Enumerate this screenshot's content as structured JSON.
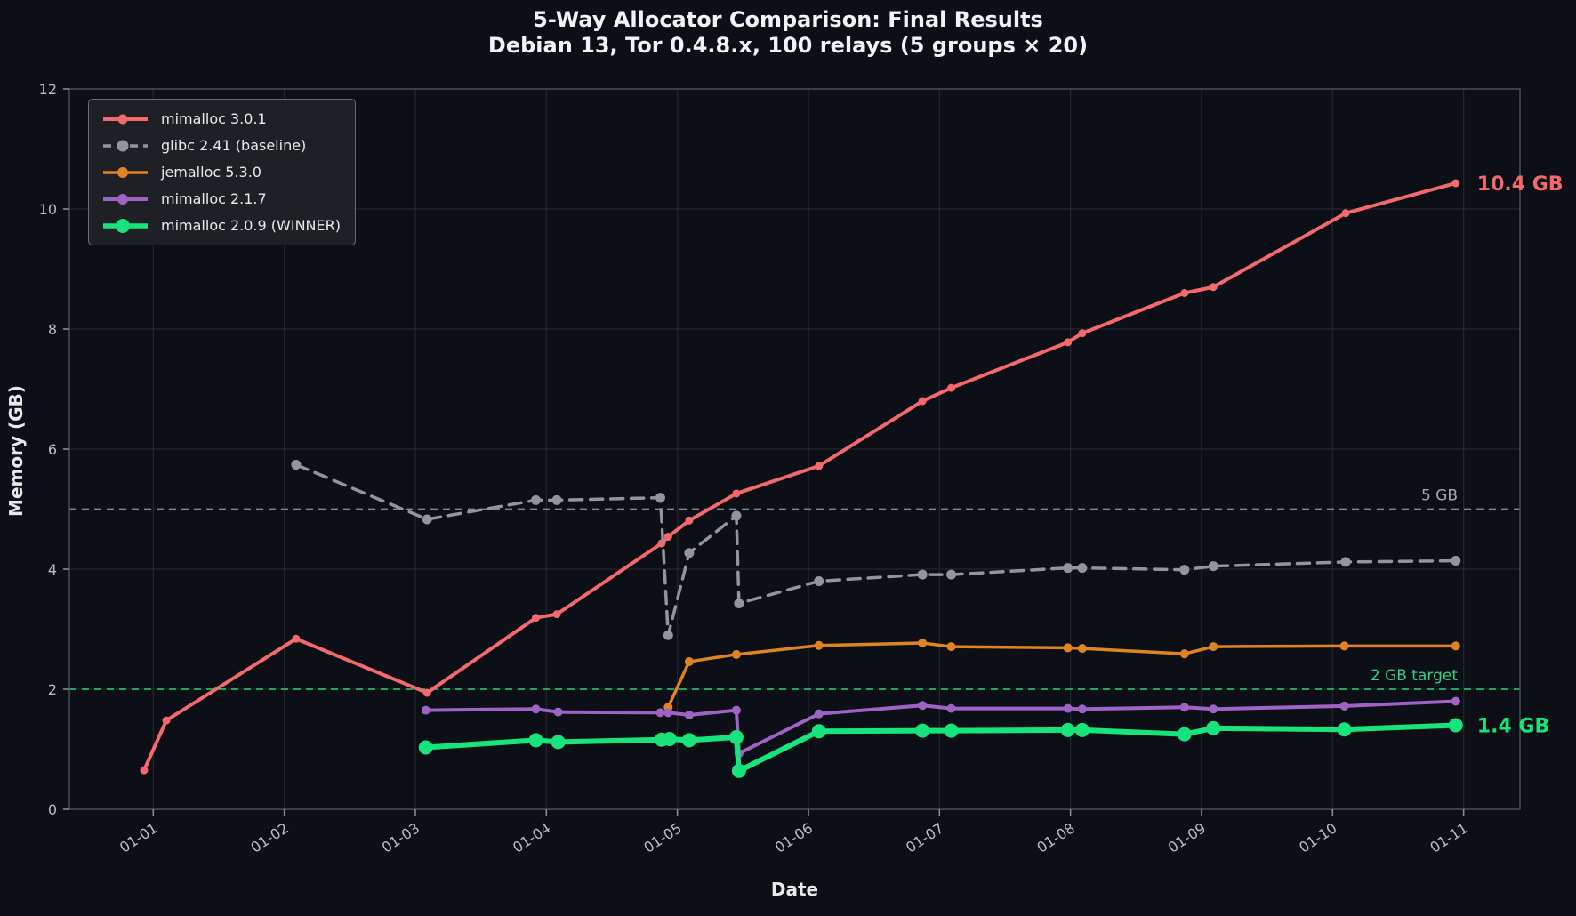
{
  "title": {
    "line1": "5-Way Allocator Comparison: Final Results",
    "line2": "Debian 13, Tor 0.4.8.x, 100 relays (5 groups × 20)"
  },
  "chart_data": {
    "type": "line",
    "title": "5-Way Allocator Comparison: Final Results",
    "subtitle": "Debian 13, Tor 0.4.8.x, 100 relays (5 groups × 20)",
    "xlabel": "Date",
    "ylabel": "Memory (GB)",
    "ylim": [
      0,
      12
    ],
    "xlim_days": [
      -0.64,
      10.43
    ],
    "grid": true,
    "legend_position": "upper-left",
    "y_ticks": [
      0,
      2,
      4,
      6,
      8,
      10,
      12
    ],
    "x_ticks": {
      "days": [
        0,
        1,
        2,
        3,
        4,
        5,
        6,
        7,
        8,
        9,
        10
      ],
      "labels": [
        "01-01",
        "01-02",
        "01-03",
        "01-04",
        "01-05",
        "01-06",
        "01-07",
        "01-08",
        "01-09",
        "01-10",
        "01-11"
      ]
    },
    "series": [
      {
        "name": "mimalloc 3.0.1",
        "color": "#f4696b",
        "style": "solid",
        "line_width": 4,
        "marker_radius": 4.5,
        "x": [
          -0.07,
          0.1,
          1.09,
          2.09,
          2.92,
          3.08,
          3.88,
          3.93,
          4.09,
          4.45,
          5.08,
          5.87,
          6.09,
          6.98,
          7.09,
          7.87,
          8.09,
          9.1,
          9.94
        ],
        "y": [
          0.65,
          1.48,
          2.84,
          1.94,
          3.19,
          3.25,
          4.43,
          4.54,
          4.81,
          5.26,
          5.72,
          6.8,
          7.02,
          7.78,
          7.93,
          8.6,
          8.7,
          9.93,
          10.43
        ]
      },
      {
        "name": "glibc 2.41 (baseline)",
        "color": "#92969b",
        "style": "dashed",
        "line_width": 3.5,
        "marker_radius": 5.5,
        "x": [
          1.09,
          2.09,
          2.92,
          3.08,
          3.87,
          3.93,
          4.09,
          4.45,
          4.47,
          5.08,
          5.87,
          6.09,
          6.98,
          7.09,
          7.87,
          8.09,
          9.1,
          9.94
        ],
        "y": [
          5.74,
          4.83,
          5.15,
          5.15,
          5.19,
          2.9,
          4.27,
          4.89,
          3.43,
          3.8,
          3.91,
          3.91,
          4.02,
          4.02,
          3.99,
          4.05,
          4.12,
          4.14
        ]
      },
      {
        "name": "jemalloc 5.3.0",
        "color": "#e08423",
        "style": "solid",
        "line_width": 3.5,
        "marker_radius": 5,
        "x": [
          3.93,
          4.09,
          4.45,
          5.08,
          5.87,
          6.09,
          6.98,
          7.09,
          7.87,
          8.09,
          9.09,
          9.94
        ],
        "y": [
          1.7,
          2.46,
          2.58,
          2.73,
          2.77,
          2.71,
          2.69,
          2.68,
          2.59,
          2.71,
          2.72,
          2.72
        ]
      },
      {
        "name": "mimalloc 2.1.7",
        "color": "#9f63c5",
        "style": "solid",
        "line_width": 4,
        "marker_radius": 5,
        "x": [
          2.08,
          2.92,
          3.09,
          3.87,
          3.93,
          4.09,
          4.45,
          4.47,
          5.08,
          5.87,
          6.09,
          6.98,
          7.09,
          7.87,
          8.09,
          9.09,
          9.94
        ],
        "y": [
          1.65,
          1.67,
          1.62,
          1.61,
          1.61,
          1.57,
          1.65,
          0.93,
          1.59,
          1.73,
          1.68,
          1.68,
          1.67,
          1.7,
          1.67,
          1.72,
          1.8
        ]
      },
      {
        "name": "mimalloc 2.0.9 (WINNER)",
        "color": "#17e57c",
        "style": "solid",
        "line_width": 6,
        "marker_radius": 8,
        "x": [
          2.08,
          2.92,
          3.09,
          3.88,
          3.94,
          4.09,
          4.45,
          4.47,
          5.08,
          5.87,
          6.09,
          6.98,
          7.09,
          7.87,
          8.09,
          9.09,
          9.94
        ],
        "y": [
          1.03,
          1.15,
          1.12,
          1.16,
          1.17,
          1.15,
          1.2,
          0.64,
          1.3,
          1.31,
          1.31,
          1.32,
          1.32,
          1.25,
          1.35,
          1.33,
          1.4
        ]
      }
    ],
    "reference_lines": [
      {
        "label": "5 GB",
        "value": 5,
        "line_color": "#85898f",
        "label_color": "#a6aab0"
      },
      {
        "label": "2 GB target",
        "value": 2,
        "line_color": "#24b868",
        "label_color": "#2ed47f"
      }
    ],
    "annotations": [
      {
        "text": "10.4 GB",
        "series_index": 0,
        "color": "#f4696b"
      },
      {
        "text": "1.4 GB",
        "series_index": 4,
        "color": "#17e57c"
      }
    ]
  }
}
